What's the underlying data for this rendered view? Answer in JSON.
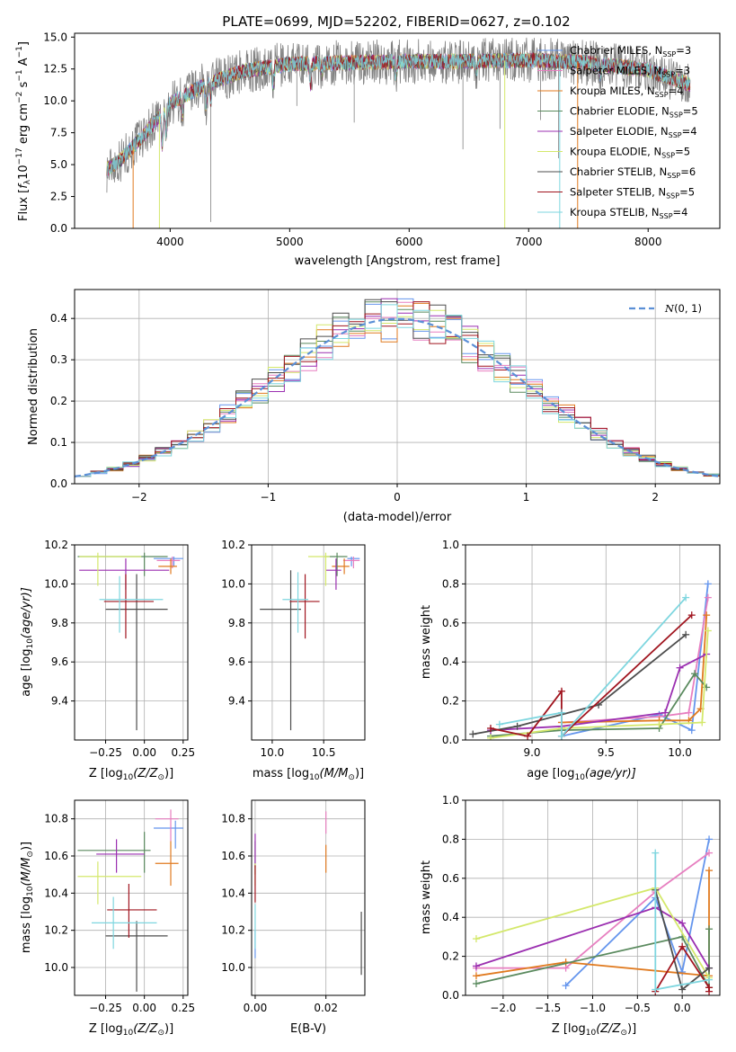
{
  "colors": [
    "#6495ED",
    "#E77FC0",
    "#E07A1F",
    "#5A8A5E",
    "#9B2FB0",
    "#D4E86B",
    "#4D4D4D",
    "#A0141E",
    "#7ED6DF"
  ],
  "panel1": {
    "title": "PLATE=0699, MJD=52202, FIBERID=0627, z=0.102",
    "xlabel": "wavelength [Angstrom, rest frame]",
    "ylabel_parts": [
      "Flux [",
      "f",
      "λ",
      "10",
      "−17",
      " erg cm",
      "−2",
      " s",
      "−1",
      " A",
      "−1",
      "]"
    ],
    "xticks": [
      "4000",
      "5000",
      "6000",
      "7000",
      "8000"
    ],
    "yticks": [
      "0.0",
      "2.5",
      "5.0",
      "7.5",
      "10.0",
      "12.5",
      "15.0"
    ],
    "legend": [
      {
        "pre": "Chabrier MILES, N",
        "sub": "SSP",
        "post": "=3"
      },
      {
        "pre": "Salpeter MILES, N",
        "sub": "SSP",
        "post": "=3"
      },
      {
        "pre": "Kroupa MILES, N",
        "sub": "SSP",
        "post": "=4"
      },
      {
        "pre": "Chabrier ELODIE, N",
        "sub": "SSP",
        "post": "=5"
      },
      {
        "pre": "Salpeter ELODIE, N",
        "sub": "SSP",
        "post": "=4"
      },
      {
        "pre": "Kroupa ELODIE, N",
        "sub": "SSP",
        "post": "=5"
      },
      {
        "pre": "Chabrier STELIB, N",
        "sub": "SSP",
        "post": "=6"
      },
      {
        "pre": "Salpeter STELIB, N",
        "sub": "SSP",
        "post": "=5"
      },
      {
        "pre": "Kroupa STELIB, N",
        "sub": "SSP",
        "post": "=4"
      }
    ]
  },
  "panel2": {
    "xlabel": "(data-model)/error",
    "ylabel": "Normed distribution",
    "xticks": [
      "−2",
      "−1",
      "0",
      "1",
      "2"
    ],
    "yticks": [
      "0.0",
      "0.1",
      "0.2",
      "0.3",
      "0.4"
    ],
    "legend_n": "N",
    "legend_args": "(0, 1)"
  },
  "panel3": {
    "xlabel": "Z [log",
    "xlabel_sub": "10",
    "xlabel_mid": "(Z/Z",
    "xlabel_sun": "⊙",
    "xlabel_end": ")]",
    "ylabel": "age  [log",
    "ylabel_sub": "10",
    "ylabel_end": "(age/yr)]",
    "xticks": [
      "−0.25",
      "0.00",
      "0.25"
    ],
    "yticks": [
      "9.4",
      "9.6",
      "9.8",
      "10.0",
      "10.2"
    ]
  },
  "panel4": {
    "xlabel": "mass [log",
    "xlabel_sub": "10",
    "xlabel_mid": "(M/M",
    "xlabel_sun": "⊙",
    "xlabel_end": ")]",
    "xticks": [
      "10.0",
      "10.5"
    ],
    "yticks": [
      "9.4",
      "9.6",
      "9.8",
      "10.0",
      "10.2"
    ]
  },
  "panel5": {
    "xlabel": "age  [log",
    "xlabel_sub": "10",
    "xlabel_end": "(age/yr)]",
    "ylabel": "mass weight",
    "xticks": [
      "9.0",
      "9.5",
      "10.0"
    ],
    "yticks": [
      "0.0",
      "0.2",
      "0.4",
      "0.6",
      "0.8",
      "1.0"
    ]
  },
  "panel6": {
    "xlabel": "Z [log",
    "xlabel_sub": "10",
    "xlabel_mid": "(Z/Z",
    "xlabel_sun": "⊙",
    "xlabel_end": ")]",
    "ylabel": "mass [log",
    "ylabel_sub": "10",
    "ylabel_mid": "(M/M",
    "ylabel_sun": "⊙",
    "ylabel_end": ")]",
    "xticks": [
      "−0.25",
      "0.00",
      "0.25"
    ],
    "yticks": [
      "10.0",
      "10.2",
      "10.4",
      "10.6",
      "10.8"
    ]
  },
  "panel7": {
    "xlabel": "E(B-V)",
    "xticks": [
      "0.00",
      "0.02"
    ],
    "yticks": [
      "10.0",
      "10.2",
      "10.4",
      "10.6",
      "10.8"
    ]
  },
  "panel8": {
    "xlabel": "Z [log",
    "xlabel_sub": "10",
    "xlabel_mid": "(Z/Z",
    "xlabel_sun": "⊙",
    "xlabel_end": ")]",
    "ylabel": "mass weight",
    "xticks": [
      "−2.0",
      "−1.5",
      "−1.0",
      "−0.5",
      "0.0"
    ],
    "yticks": [
      "0.0",
      "0.2",
      "0.4",
      "0.6",
      "0.8",
      "1.0"
    ]
  },
  "chart_data": [
    {
      "type": "line",
      "title": "PLATE=0699, MJD=52202, FIBERID=0627, z=0.102",
      "xlabel": "wavelength [Angstrom, rest frame]",
      "ylabel": "Flux [fλ10^-17 erg cm^-2 s^-1 A^-1]",
      "xlim": [
        3200,
        8600
      ],
      "ylim": [
        0,
        15.3
      ],
      "legend_position": "upper right",
      "continuum": {
        "x": [
          3470,
          3600,
          3800,
          4000,
          4300,
          4600,
          5000,
          5500,
          6000,
          6500,
          7000,
          7500,
          8000,
          8350
        ],
        "y": [
          4.6,
          5.5,
          7.5,
          9.8,
          11.3,
          12.3,
          12.9,
          13.0,
          13.1,
          13.1,
          13.2,
          13.0,
          12.4,
          11.3
        ]
      },
      "series": [
        {
          "name": "Chabrier MILES, NSSP=3"
        },
        {
          "name": "Salpeter MILES, NSSP=3"
        },
        {
          "name": "Kroupa MILES, NSSP=4"
        },
        {
          "name": "Chabrier ELODIE, NSSP=5"
        },
        {
          "name": "Salpeter ELODIE, NSSP=4"
        },
        {
          "name": "Kroupa ELODIE, NSSP=5"
        },
        {
          "name": "Chabrier STELIB, NSSP=6"
        },
        {
          "name": "Salpeter STELIB, NSSP=5"
        },
        {
          "name": "Kroupa STELIB, NSSP=4"
        }
      ]
    },
    {
      "type": "line",
      "xlabel": "(data-model)/error",
      "ylabel": "Normed distribution",
      "xlim": [
        -2.5,
        2.5
      ],
      "ylim": [
        0,
        0.47
      ],
      "bins": 40,
      "legend": [
        "𝒩(0, 1)"
      ],
      "grid": true
    },
    {
      "type": "scatter",
      "xlabel": "Z [log10(Z/Z⊙)]",
      "ylabel": "age [log10(age/yr)]",
      "xlim": [
        -0.45,
        0.28
      ],
      "ylim": [
        9.2,
        10.2
      ],
      "grid": true,
      "points": [
        {
          "x": 0.19,
          "y": 10.13,
          "xerr": [
            0.13,
            0.06
          ],
          "yerr": [
            0.04,
            0.01
          ]
        },
        {
          "x": 0.18,
          "y": 10.12,
          "xerr": [
            0.1,
            0.05
          ],
          "yerr": [
            0.04,
            0.02
          ]
        },
        {
          "x": 0.17,
          "y": 10.09,
          "xerr": [
            0.08,
            0.04
          ],
          "yerr": [
            0.04,
            0.04
          ]
        },
        {
          "x": 0.0,
          "y": 10.14,
          "xerr": [
            0.43,
            0.15
          ],
          "yerr": [
            0.1,
            0.02
          ]
        },
        {
          "x": -0.12,
          "y": 10.07,
          "xerr": [
            0.3,
            0.28
          ],
          "yerr": [
            0.1,
            0.06
          ]
        },
        {
          "x": -0.3,
          "y": 10.14,
          "xerr": [
            0.12,
            0.28
          ],
          "yerr": [
            0.15,
            0.02
          ]
        },
        {
          "x": -0.05,
          "y": 9.87,
          "xerr": [
            0.2,
            0.2
          ],
          "yerr": [
            0.62,
            0.18
          ]
        },
        {
          "x": -0.12,
          "y": 9.91,
          "xerr": [
            0.14,
            0.18
          ],
          "yerr": [
            0.19,
            0.14
          ]
        },
        {
          "x": -0.16,
          "y": 9.92,
          "xerr": [
            0.13,
            0.28
          ],
          "yerr": [
            0.17,
            0.12
          ]
        }
      ]
    },
    {
      "type": "scatter",
      "xlabel": "mass [log10(M/M⊙)]",
      "ylabel": "age [log10(age/yr)]",
      "xlim": [
        9.8,
        10.9
      ],
      "ylim": [
        9.2,
        10.2
      ],
      "grid": true,
      "points": [
        {
          "x": 10.77,
          "y": 10.13,
          "xerr": [
            0.04,
            0.08
          ],
          "yerr": [
            0.04,
            0.01
          ]
        },
        {
          "x": 10.79,
          "y": 10.12,
          "xerr": [
            0.1,
            0.06
          ],
          "yerr": [
            0.04,
            0.02
          ]
        },
        {
          "x": 10.7,
          "y": 10.09,
          "xerr": [
            0.12,
            0.05
          ],
          "yerr": [
            0.04,
            0.04
          ]
        },
        {
          "x": 10.63,
          "y": 10.14,
          "xerr": [
            0.12,
            0.1
          ],
          "yerr": [
            0.1,
            0.02
          ]
        },
        {
          "x": 10.62,
          "y": 10.07,
          "xerr": [
            0.1,
            0.05
          ],
          "yerr": [
            0.1,
            0.06
          ]
        },
        {
          "x": 10.52,
          "y": 10.14,
          "xerr": [
            0.17,
            0.04
          ],
          "yerr": [
            0.15,
            0.02
          ]
        },
        {
          "x": 10.18,
          "y": 9.87,
          "xerr": [
            0.3,
            0.1
          ],
          "yerr": [
            0.62,
            0.2
          ]
        },
        {
          "x": 10.32,
          "y": 9.91,
          "xerr": [
            0.15,
            0.14
          ],
          "yerr": [
            0.19,
            0.14
          ]
        },
        {
          "x": 10.25,
          "y": 9.92,
          "xerr": [
            0.15,
            0.1
          ],
          "yerr": [
            0.17,
            0.14
          ]
        }
      ]
    },
    {
      "type": "line",
      "xlabel": "age [log10(age/yr)]",
      "ylabel": "mass weight",
      "xlim": [
        8.55,
        10.27
      ],
      "ylim": [
        0,
        1.0
      ],
      "grid": true,
      "series": [
        {
          "x": [
            9.2,
            9.86,
            10.08,
            10.19
          ],
          "y": [
            0.02,
            0.13,
            0.05,
            0.8
          ]
        },
        {
          "x": [
            9.2,
            9.86,
            10.06,
            10.19
          ],
          "y": [
            0.09,
            0.12,
            0.14,
            0.73
          ]
        },
        {
          "x": [
            9.2,
            9.86,
            10.06,
            10.14,
            10.18
          ],
          "y": [
            0.09,
            0.1,
            0.1,
            0.16,
            0.64
          ]
        },
        {
          "x": [
            8.72,
            9.2,
            9.86,
            10.1,
            10.18
          ],
          "y": [
            0.02,
            0.05,
            0.06,
            0.34,
            0.27
          ]
        },
        {
          "x": [
            8.72,
            9.2,
            9.9,
            10.0,
            10.18
          ],
          "y": [
            0.05,
            0.07,
            0.14,
            0.37,
            0.44
          ]
        },
        {
          "x": [
            8.72,
            9.2,
            9.86,
            10.15,
            10.19
          ],
          "y": [
            0.01,
            0.06,
            0.08,
            0.09,
            0.56
          ]
        },
        {
          "x": [
            8.6,
            8.9,
            9.45,
            10.04
          ],
          "y": [
            0.03,
            0.07,
            0.18,
            0.54
          ]
        },
        {
          "x": [
            8.72,
            8.97,
            9.2,
            9.2,
            10.08
          ],
          "y": [
            0.06,
            0.02,
            0.25,
            0.02,
            0.64
          ]
        },
        {
          "x": [
            8.78,
            9.2,
            9.2,
            10.04
          ],
          "y": [
            0.08,
            0.14,
            0.02,
            0.73
          ]
        }
      ]
    },
    {
      "type": "scatter",
      "xlabel": "Z [log10(Z/Z⊙)]",
      "ylabel": "mass [log10(M/M⊙)]",
      "xlim": [
        -0.45,
        0.28
      ],
      "ylim": [
        9.85,
        10.9
      ],
      "grid": true,
      "points": [
        {
          "x": 0.2,
          "y": 10.75,
          "xerr": [
            0.14,
            0.05
          ],
          "yerr": [
            0.11,
            0.04
          ]
        },
        {
          "x": 0.17,
          "y": 10.8,
          "xerr": [
            0.1,
            0.05
          ],
          "yerr": [
            0.12,
            0.05
          ]
        },
        {
          "x": 0.17,
          "y": 10.56,
          "xerr": [
            0.1,
            0.05
          ],
          "yerr": [
            0.12,
            0.12
          ]
        },
        {
          "x": 0.0,
          "y": 10.63,
          "xerr": [
            0.43,
            0.04
          ],
          "yerr": [
            0.12,
            0.1
          ]
        },
        {
          "x": -0.18,
          "y": 10.61,
          "xerr": [
            0.13,
            0.18
          ],
          "yerr": [
            0.1,
            0.08
          ]
        },
        {
          "x": -0.3,
          "y": 10.49,
          "xerr": [
            0.13,
            0.28
          ],
          "yerr": [
            0.15,
            0.08
          ]
        },
        {
          "x": -0.05,
          "y": 10.17,
          "xerr": [
            0.2,
            0.2
          ],
          "yerr": [
            0.3,
            0.08
          ]
        },
        {
          "x": -0.1,
          "y": 10.31,
          "xerr": [
            0.14,
            0.18
          ],
          "yerr": [
            0.15,
            0.14
          ]
        },
        {
          "x": -0.2,
          "y": 10.24,
          "xerr": [
            0.14,
            0.28
          ],
          "yerr": [
            0.14,
            0.14
          ]
        }
      ]
    },
    {
      "type": "scatter",
      "xlabel": "E(B-V)",
      "ylabel": "mass [log10(M/M⊙)]",
      "xlim": [
        -0.001,
        0.031
      ],
      "ylim": [
        9.85,
        10.9
      ],
      "grid": true,
      "points": [
        {
          "x": 0.0,
          "y": 10.15,
          "yerr": [
            0.1,
            0.05
          ]
        },
        {
          "x": 0.02,
          "y": 10.78,
          "yerr": [
            0.06,
            0.06
          ]
        },
        {
          "x": 0.02,
          "y": 10.56,
          "yerr": [
            0.05,
            0.1
          ]
        },
        {
          "x": 0.0,
          "y": 10.6,
          "yerr": [
            0.1,
            0.08
          ]
        },
        {
          "x": 0.0,
          "y": 10.62,
          "yerr": [
            0.08,
            0.1
          ]
        },
        {
          "x": 0.0,
          "y": 10.5,
          "yerr": [
            0.06,
            0.06
          ]
        },
        {
          "x": 0.03,
          "y": 10.08,
          "yerr": [
            0.12,
            0.22
          ]
        },
        {
          "x": 0.0,
          "y": 10.45,
          "yerr": [
            0.1,
            0.1
          ]
        },
        {
          "x": 0.0,
          "y": 10.22,
          "yerr": [
            0.12,
            0.12
          ]
        }
      ]
    },
    {
      "type": "line",
      "xlabel": "Z [log10(Z/Z⊙)]",
      "ylabel": "mass weight",
      "xlim": [
        -2.42,
        0.42
      ],
      "ylim": [
        0,
        1.0
      ],
      "grid": true,
      "series": [
        {
          "x": [
            -1.3,
            -0.3,
            0.0,
            0.3
          ],
          "y": [
            0.05,
            0.5,
            0.12,
            0.8
          ]
        },
        {
          "x": [
            -2.3,
            -1.3,
            -0.3,
            0.3
          ],
          "y": [
            0.14,
            0.14,
            0.53,
            0.73
          ]
        },
        {
          "x": [
            -2.3,
            -1.3,
            0.3,
            0.3
          ],
          "y": [
            0.1,
            0.17,
            0.1,
            0.64
          ]
        },
        {
          "x": [
            -2.3,
            0.0,
            0.3,
            0.3
          ],
          "y": [
            0.06,
            0.3,
            0.04,
            0.34
          ]
        },
        {
          "x": [
            -2.3,
            -0.3,
            0.0,
            0.3
          ],
          "y": [
            0.15,
            0.45,
            0.37,
            0.14
          ]
        },
        {
          "x": [
            -2.3,
            -0.3,
            0.3
          ],
          "y": [
            0.29,
            0.55,
            0.09
          ]
        },
        {
          "x": [
            -0.3,
            0.0,
            0.3
          ],
          "y": [
            0.54,
            0.03,
            0.14
          ]
        },
        {
          "x": [
            -0.3,
            0.0,
            0.3,
            0.3
          ],
          "y": [
            0.02,
            0.25,
            0.04,
            0.02
          ]
        },
        {
          "x": [
            -0.3,
            -0.3,
            0.3
          ],
          "y": [
            0.73,
            0.03,
            0.08
          ]
        }
      ]
    }
  ]
}
